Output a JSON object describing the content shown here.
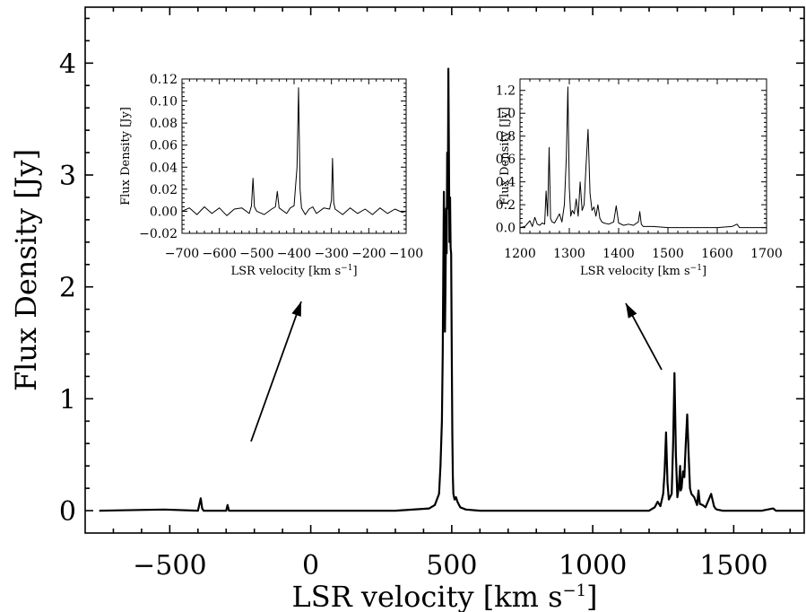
{
  "chart_data": [
    {
      "type": "line",
      "xlabel": "LSR velocity [km s⁻¹]",
      "xlabel_base": "LSR velocity [km s",
      "xlabel_sup": "−1",
      "xlabel_close": "]",
      "ylabel": "Flux Density [Jy]",
      "xlim": [
        -800,
        1750
      ],
      "ylim": [
        -0.2,
        4.5
      ],
      "xticks": [
        -500,
        0,
        500,
        1000,
        1500
      ],
      "xtick_labels": [
        "−500",
        "0",
        "500",
        "1000",
        "1500"
      ],
      "yticks": [
        0,
        1,
        2,
        3,
        4
      ],
      "ytick_labels": [
        "0",
        "1",
        "2",
        "3",
        "4"
      ],
      "grid": false,
      "series": [
        {
          "x": [
            -750,
            -520,
            -400,
            -390,
            -385,
            -380,
            -300,
            -295,
            -290,
            0,
            300,
            420,
            440,
            455,
            460,
            465,
            468,
            470,
            472,
            474,
            476,
            478,
            480,
            482,
            484,
            486,
            488,
            490,
            492,
            494,
            496,
            498,
            500,
            502,
            504,
            506,
            510,
            515,
            520,
            530,
            550,
            600,
            900,
            1200,
            1220,
            1230,
            1240,
            1250,
            1255,
            1260,
            1265,
            1270,
            1280,
            1285,
            1290,
            1295,
            1300,
            1305,
            1310,
            1312,
            1315,
            1320,
            1325,
            1330,
            1335,
            1340,
            1345,
            1350,
            1360,
            1370,
            1375,
            1380,
            1390,
            1400,
            1420,
            1430,
            1435,
            1440,
            1460,
            1500,
            1600,
            1640,
            1650,
            1700,
            1750
          ],
          "y": [
            0,
            0.01,
            0,
            0.11,
            0.02,
            0,
            0,
            0.05,
            0,
            0,
            0,
            0.02,
            0.05,
            0.15,
            0.4,
            0.8,
            1.4,
            2.1,
            2.85,
            2.3,
            1.6,
            2.0,
            2.7,
            2.3,
            3.2,
            2.7,
            3.95,
            3.2,
            2.4,
            2.8,
            2.35,
            2.3,
            1.4,
            0.7,
            0.3,
            0.15,
            0.1,
            0.12,
            0.08,
            0.03,
            0.01,
            0,
            0,
            0,
            0.03,
            0.08,
            0.04,
            0.15,
            0.35,
            0.7,
            0.25,
            0.1,
            0.15,
            0.6,
            1.23,
            0.5,
            0.12,
            0.2,
            0.4,
            0.18,
            0.2,
            0.35,
            0.3,
            0.6,
            0.86,
            0.5,
            0.2,
            0.15,
            0.12,
            0.05,
            0.18,
            0.06,
            0.05,
            0.03,
            0.15,
            0.04,
            0.02,
            0.01,
            0,
            0,
            0,
            0.02,
            0,
            0,
            0
          ]
        }
      ]
    },
    {
      "type": "line",
      "xlabel": "LSR velocity [km s⁻¹]",
      "xlabel_base": "LSR velocity [km s",
      "xlabel_sup": "−1",
      "xlabel_close": "]",
      "ylabel": "Flux Density [Jy]",
      "xlim": [
        -700,
        -100
      ],
      "ylim": [
        -0.02,
        0.12
      ],
      "xticks": [
        -700,
        -600,
        -500,
        -400,
        -300,
        -200,
        -100
      ],
      "xtick_labels": [
        "−700",
        "−600",
        "−500",
        "−400",
        "−300",
        "−200",
        "−100"
      ],
      "yticks": [
        -0.02,
        0.0,
        0.02,
        0.04,
        0.06,
        0.08,
        0.1,
        0.12
      ],
      "ytick_labels": [
        "−0.02",
        "0.00",
        "0.02",
        "0.04",
        "0.06",
        "0.08",
        "0.10",
        "0.12"
      ],
      "grid": false,
      "series": [
        {
          "x": [
            -700,
            -680,
            -660,
            -640,
            -620,
            -600,
            -580,
            -560,
            -540,
            -520,
            -514,
            -510,
            -506,
            -500,
            -480,
            -460,
            -450,
            -445,
            -440,
            -420,
            -410,
            -400,
            -392,
            -388,
            -384,
            -380,
            -370,
            -360,
            -350,
            -340,
            -320,
            -305,
            -300,
            -297,
            -294,
            -290,
            -270,
            -250,
            -230,
            -210,
            -190,
            -170,
            -150,
            -130,
            -110,
            -100
          ],
          "y": [
            0.0,
            0.003,
            -0.003,
            0.004,
            -0.002,
            0.003,
            -0.004,
            0.002,
            0.003,
            -0.002,
            0.005,
            0.03,
            0.004,
            0.0,
            -0.003,
            0.002,
            0.004,
            0.018,
            0.003,
            -0.002,
            0.003,
            0.005,
            0.04,
            0.112,
            0.02,
            0.003,
            -0.003,
            0.002,
            0.004,
            -0.002,
            0.003,
            0.002,
            0.01,
            0.048,
            0.008,
            0.002,
            -0.003,
            0.003,
            -0.002,
            0.002,
            -0.003,
            0.003,
            -0.002,
            0.002,
            -0.001,
            0.0
          ]
        }
      ]
    },
    {
      "type": "line",
      "xlabel": "LSR velocity [km s⁻¹]",
      "xlabel_base": "LSR velocity [km s",
      "xlabel_sup": "−1",
      "xlabel_close": "]",
      "ylabel": "Flux Density [Jy]",
      "xlim": [
        1200,
        1700
      ],
      "ylim": [
        -0.05,
        1.3
      ],
      "xticks": [
        1200,
        1300,
        1400,
        1500,
        1600,
        1700
      ],
      "xtick_labels": [
        "1200",
        "1300",
        "1400",
        "1500",
        "1600",
        "1700"
      ],
      "yticks": [
        0.0,
        0.2,
        0.4,
        0.6,
        0.8,
        1.0,
        1.2
      ],
      "ytick_labels": [
        "0.0",
        "0.2",
        "0.4",
        "0.6",
        "0.8",
        "1.0",
        "1.2"
      ],
      "grid": false,
      "series": [
        {
          "x": [
            1200,
            1210,
            1220,
            1225,
            1230,
            1235,
            1240,
            1245,
            1250,
            1253,
            1256,
            1259,
            1262,
            1265,
            1270,
            1280,
            1285,
            1290,
            1294,
            1297,
            1300,
            1303,
            1306,
            1310,
            1314,
            1318,
            1322,
            1326,
            1330,
            1334,
            1338,
            1342,
            1346,
            1350,
            1354,
            1358,
            1362,
            1366,
            1370,
            1380,
            1390,
            1395,
            1400,
            1410,
            1420,
            1430,
            1440,
            1443,
            1446,
            1450,
            1470,
            1500,
            1550,
            1600,
            1630,
            1640,
            1645,
            1650,
            1680,
            1700
          ],
          "y": [
            0.0,
            0.01,
            0.06,
            0.01,
            0.09,
            0.03,
            0.02,
            0.04,
            0.03,
            0.32,
            0.1,
            0.7,
            0.08,
            0.05,
            0.04,
            0.12,
            0.05,
            0.2,
            0.62,
            1.23,
            0.35,
            0.1,
            0.15,
            0.12,
            0.25,
            0.1,
            0.4,
            0.15,
            0.2,
            0.55,
            0.86,
            0.3,
            0.15,
            0.18,
            0.1,
            0.2,
            0.08,
            0.05,
            0.04,
            0.03,
            0.05,
            0.19,
            0.04,
            0.02,
            0.03,
            0.02,
            0.05,
            0.14,
            0.03,
            0.01,
            0.01,
            0.0,
            0.0,
            0.0,
            0.01,
            0.03,
            0.0,
            0.0,
            0.0,
            0.0
          ]
        }
      ]
    }
  ]
}
